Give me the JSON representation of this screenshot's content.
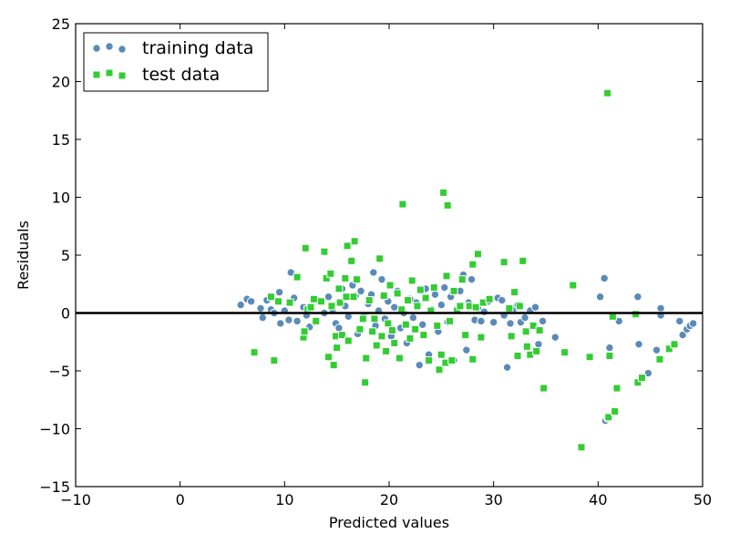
{
  "chart_data": {
    "type": "scatter",
    "xlabel": "Predicted values",
    "ylabel": "Residuals",
    "xlim": [
      -10,
      50
    ],
    "ylim": [
      -15,
      25
    ],
    "xticks": [
      "−10",
      "0",
      "10",
      "20",
      "30",
      "40",
      "50"
    ],
    "yticks": [
      "−15",
      "−10",
      "−5",
      "0",
      "5",
      "10",
      "15",
      "20",
      "25"
    ],
    "legend_position": "top-left",
    "hline": 0,
    "series": [
      {
        "name": "training data",
        "marker": "circle",
        "color": "#5a8ab8",
        "points": [
          [
            5.8,
            0.7
          ],
          [
            6.4,
            1.2
          ],
          [
            6.8,
            1.0
          ],
          [
            7.7,
            0.4
          ],
          [
            7.9,
            -0.4
          ],
          [
            8.3,
            1.1
          ],
          [
            8.7,
            0.3
          ],
          [
            9.0,
            0.0
          ],
          [
            9.5,
            1.8
          ],
          [
            9.6,
            -0.9
          ],
          [
            10.0,
            0.2
          ],
          [
            10.4,
            -0.6
          ],
          [
            10.6,
            3.5
          ],
          [
            10.9,
            1.3
          ],
          [
            11.2,
            -0.7
          ],
          [
            11.8,
            0.5
          ],
          [
            12.1,
            -0.2
          ],
          [
            12.4,
            -1.2
          ],
          [
            12.9,
            -0.8
          ],
          [
            13.3,
            1.1
          ],
          [
            13.8,
            0.0
          ],
          [
            14.2,
            1.4
          ],
          [
            14.6,
            0.3
          ],
          [
            14.9,
            -0.9
          ],
          [
            15.2,
            -1.3
          ],
          [
            15.5,
            2.1
          ],
          [
            15.8,
            0.6
          ],
          [
            16.1,
            -0.3
          ],
          [
            16.5,
            2.4
          ],
          [
            16.8,
            1.5
          ],
          [
            17.0,
            -1.8
          ],
          [
            17.3,
            1.9
          ],
          [
            17.6,
            -0.2
          ],
          [
            18.0,
            0.8
          ],
          [
            18.3,
            1.6
          ],
          [
            18.5,
            3.5
          ],
          [
            18.7,
            -1.1
          ],
          [
            19.0,
            0.2
          ],
          [
            19.3,
            2.9
          ],
          [
            19.6,
            -0.5
          ],
          [
            19.9,
            1.0
          ],
          [
            20.2,
            -2.0
          ],
          [
            20.5,
            0.5
          ],
          [
            20.8,
            1.9
          ],
          [
            21.1,
            -1.3
          ],
          [
            21.4,
            0.0
          ],
          [
            21.7,
            -2.6
          ],
          [
            22.0,
            1.2
          ],
          [
            22.3,
            -0.4
          ],
          [
            22.6,
            0.9
          ],
          [
            22.9,
            -4.5
          ],
          [
            23.2,
            -1.0
          ],
          [
            23.5,
            2.1
          ],
          [
            23.8,
            -3.6
          ],
          [
            24.1,
            0.3
          ],
          [
            24.4,
            1.6
          ],
          [
            24.7,
            -1.6
          ],
          [
            25.0,
            0.7
          ],
          [
            25.3,
            2.2
          ],
          [
            25.6,
            -0.8
          ],
          [
            25.9,
            1.4
          ],
          [
            26.2,
            -4.1
          ],
          [
            26.5,
            0.2
          ],
          [
            26.8,
            1.9
          ],
          [
            27.1,
            3.3
          ],
          [
            27.4,
            -3.2
          ],
          [
            27.6,
            0.9
          ],
          [
            27.9,
            2.9
          ],
          [
            28.2,
            -0.6
          ],
          [
            28.5,
            0.4
          ],
          [
            28.8,
            -0.7
          ],
          [
            29.1,
            0.1
          ],
          [
            29.5,
            1.0
          ],
          [
            30.0,
            -0.8
          ],
          [
            30.4,
            1.3
          ],
          [
            30.8,
            1.1
          ],
          [
            31.0,
            -0.2
          ],
          [
            31.3,
            -4.7
          ],
          [
            31.6,
            -0.9
          ],
          [
            32.0,
            0.4
          ],
          [
            32.3,
            0.7
          ],
          [
            32.6,
            -0.8
          ],
          [
            33.0,
            -0.4
          ],
          [
            33.5,
            0.2
          ],
          [
            34.0,
            0.5
          ],
          [
            34.3,
            -2.7
          ],
          [
            34.7,
            -0.7
          ],
          [
            35.9,
            -2.1
          ],
          [
            40.2,
            1.4
          ],
          [
            40.6,
            3.0
          ],
          [
            40.7,
            -9.3
          ],
          [
            40.9,
            -9.1
          ],
          [
            41.1,
            -3.0
          ],
          [
            42.0,
            -0.7
          ],
          [
            43.8,
            1.4
          ],
          [
            43.9,
            -2.7
          ],
          [
            44.8,
            -5.2
          ],
          [
            45.6,
            -3.2
          ],
          [
            46.0,
            0.4
          ],
          [
            46.0,
            -0.2
          ],
          [
            47.8,
            -0.7
          ],
          [
            48.1,
            -1.9
          ],
          [
            48.5,
            -1.4
          ],
          [
            48.8,
            -1.1
          ],
          [
            49.1,
            -0.9
          ]
        ]
      },
      {
        "name": "test data",
        "marker": "square",
        "color": "#33cc33",
        "points": [
          [
            7.1,
            -3.4
          ],
          [
            8.7,
            1.4
          ],
          [
            9.0,
            -4.1
          ],
          [
            9.4,
            1.0
          ],
          [
            10.5,
            0.9
          ],
          [
            11.2,
            3.1
          ],
          [
            11.8,
            -2.1
          ],
          [
            11.9,
            -1.6
          ],
          [
            12.0,
            5.6
          ],
          [
            12.2,
            0.3
          ],
          [
            12.5,
            0.5
          ],
          [
            12.8,
            1.2
          ],
          [
            13.0,
            -0.7
          ],
          [
            13.5,
            1.0
          ],
          [
            13.8,
            5.3
          ],
          [
            14.0,
            3.0
          ],
          [
            14.2,
            -3.8
          ],
          [
            14.4,
            3.4
          ],
          [
            14.5,
            0.6
          ],
          [
            14.7,
            -4.5
          ],
          [
            14.9,
            -2.0
          ],
          [
            15.0,
            -3.0
          ],
          [
            15.2,
            2.1
          ],
          [
            15.3,
            0.9
          ],
          [
            15.5,
            -1.9
          ],
          [
            15.8,
            3.0
          ],
          [
            15.9,
            1.4
          ],
          [
            16.0,
            5.8
          ],
          [
            16.1,
            -2.4
          ],
          [
            16.4,
            4.5
          ],
          [
            16.6,
            1.4
          ],
          [
            16.7,
            6.2
          ],
          [
            16.9,
            2.9
          ],
          [
            17.2,
            -1.4
          ],
          [
            17.5,
            -0.5
          ],
          [
            17.7,
            -6.0
          ],
          [
            17.8,
            -3.9
          ],
          [
            18.1,
            1.1
          ],
          [
            18.4,
            -1.6
          ],
          [
            18.6,
            -0.5
          ],
          [
            18.8,
            -2.8
          ],
          [
            19.1,
            4.7
          ],
          [
            19.3,
            -2.0
          ],
          [
            19.5,
            1.5
          ],
          [
            19.7,
            -3.3
          ],
          [
            19.9,
            -0.9
          ],
          [
            20.1,
            2.4
          ],
          [
            20.3,
            -1.5
          ],
          [
            20.5,
            -2.6
          ],
          [
            20.8,
            1.7
          ],
          [
            21.0,
            -3.9
          ],
          [
            21.2,
            0.3
          ],
          [
            21.3,
            9.4
          ],
          [
            21.6,
            -1.0
          ],
          [
            21.8,
            1.1
          ],
          [
            22.0,
            -2.2
          ],
          [
            22.2,
            2.8
          ],
          [
            22.5,
            -1.4
          ],
          [
            22.7,
            0.6
          ],
          [
            23.0,
            2.0
          ],
          [
            23.3,
            -1.9
          ],
          [
            23.5,
            1.3
          ],
          [
            23.8,
            -4.1
          ],
          [
            24.0,
            0.2
          ],
          [
            24.3,
            2.2
          ],
          [
            24.6,
            -1.1
          ],
          [
            24.8,
            -4.9
          ],
          [
            25.0,
            -3.6
          ],
          [
            25.2,
            10.4
          ],
          [
            25.4,
            -4.3
          ],
          [
            25.5,
            3.2
          ],
          [
            25.6,
            9.3
          ],
          [
            25.8,
            -0.7
          ],
          [
            26.0,
            -4.1
          ],
          [
            26.2,
            1.9
          ],
          [
            26.5,
            0.2
          ],
          [
            26.8,
            0.6
          ],
          [
            27.0,
            2.9
          ],
          [
            27.3,
            -1.9
          ],
          [
            27.7,
            0.6
          ],
          [
            28.0,
            4.2
          ],
          [
            28.0,
            -4.0
          ],
          [
            28.3,
            0.5
          ],
          [
            28.5,
            5.1
          ],
          [
            28.8,
            -2.1
          ],
          [
            29.0,
            0.9
          ],
          [
            29.6,
            1.2
          ],
          [
            31.0,
            4.4
          ],
          [
            31.5,
            0.4
          ],
          [
            31.7,
            -2.0
          ],
          [
            32.0,
            1.8
          ],
          [
            32.3,
            -3.7
          ],
          [
            32.5,
            0.6
          ],
          [
            32.8,
            4.5
          ],
          [
            33.1,
            -1.6
          ],
          [
            33.2,
            -2.9
          ],
          [
            33.5,
            -3.6
          ],
          [
            33.8,
            -1.1
          ],
          [
            34.1,
            -3.3
          ],
          [
            34.4,
            -1.5
          ],
          [
            34.8,
            -6.5
          ],
          [
            36.8,
            -3.4
          ],
          [
            37.6,
            2.4
          ],
          [
            38.4,
            -11.6
          ],
          [
            39.2,
            -3.8
          ],
          [
            40.9,
            19.0
          ],
          [
            41.0,
            -9.0
          ],
          [
            41.1,
            -3.7
          ],
          [
            41.4,
            -0.3
          ],
          [
            41.6,
            -8.5
          ],
          [
            41.8,
            -6.5
          ],
          [
            43.6,
            -0.1
          ],
          [
            43.8,
            -6.0
          ],
          [
            44.2,
            -5.6
          ],
          [
            45.9,
            -4.0
          ],
          [
            46.8,
            -3.1
          ],
          [
            47.3,
            -2.7
          ]
        ]
      }
    ]
  }
}
